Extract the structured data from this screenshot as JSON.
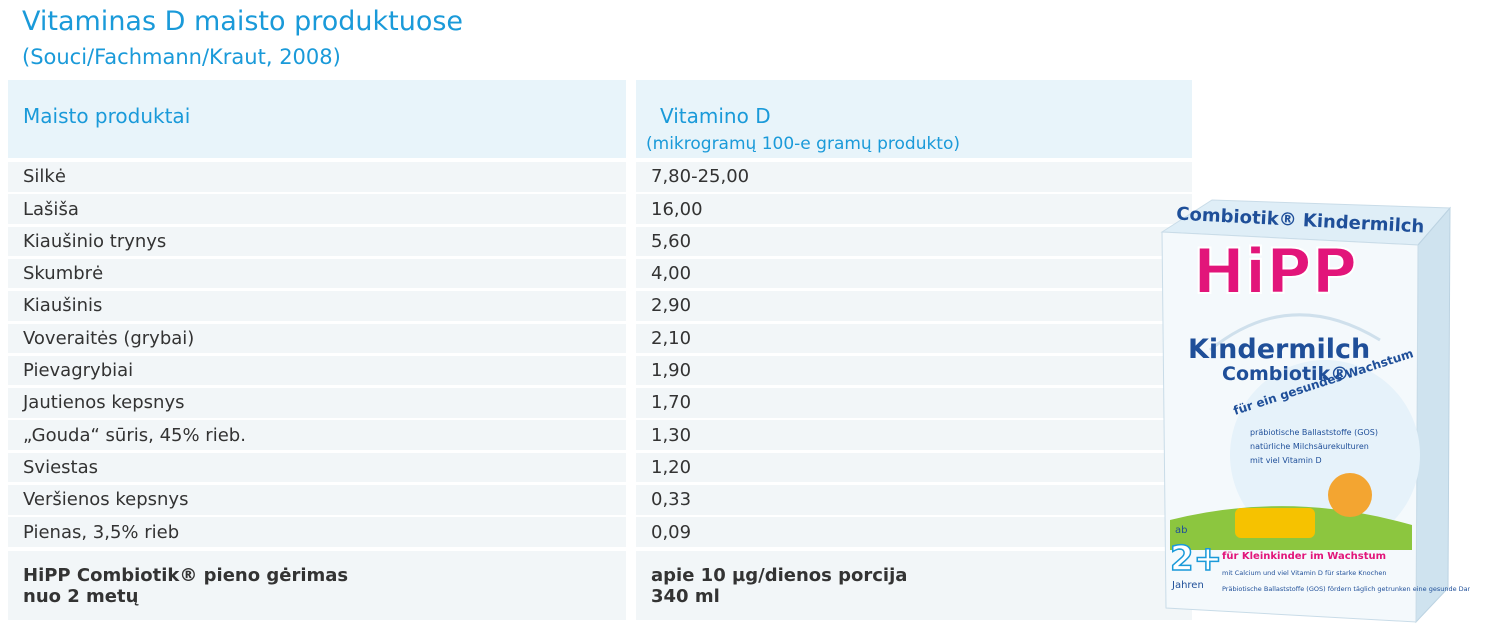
{
  "header": {
    "title": "Vitaminas D maisto produktuose",
    "subtitle": "(Souci/Fachmann/Kraut, 2008)"
  },
  "table": {
    "columns": [
      "Maisto produktai",
      [
        "Vitamino D",
        "(mikrogramų 100-e gramų produkto)"
      ]
    ],
    "rows": [
      [
        "Silkė",
        "7,80-25,00"
      ],
      [
        "Lašiša",
        "16,00"
      ],
      [
        "Kiaušinio trynys",
        "5,60"
      ],
      [
        "Skumbrė",
        "4,00"
      ],
      [
        "Kiaušinis",
        "2,90"
      ],
      [
        "Voveraitės (grybai)",
        "2,10"
      ],
      [
        "Pievagrybiai",
        "1,90"
      ],
      [
        "Jautienos kepsnys",
        "1,70"
      ],
      [
        "„Gouda“ sūris, 45% rieb.",
        "1,30"
      ],
      [
        "Sviestas",
        "1,20"
      ],
      [
        "Veršienos kepsnys",
        "0,33"
      ],
      [
        "Pienas, 3,5% rieb",
        "0,09"
      ]
    ],
    "footer": [
      [
        "HiPP Combiotik® pieno gėrimas",
        "nuo 2 metų"
      ],
      [
        "apie 10 µg/dienos porcija",
        "340 ml"
      ]
    ]
  },
  "product": {
    "top_text": "Combiotik® Kindermilch",
    "brand": "HiPP",
    "name": "Kindermilch",
    "line": "Combiotik®",
    "arc_text": "für ein gesundes Wachstum",
    "bullets": [
      "präbiotische Ballaststoffe (GOS)",
      "natürliche Milchsäurekulturen",
      "mit viel Vitamin D"
    ],
    "age_prefix": "ab",
    "age": "2+",
    "age_suffix": "Jahren",
    "tagline": "für Kleinkinder im Wachstum",
    "notes": [
      "mit Calcium und viel Vitamin D für starke Knochen",
      "Präbiotische Ballaststoffe (GOS) fördern täglich getrunken eine gesunde Darmflora."
    ]
  }
}
